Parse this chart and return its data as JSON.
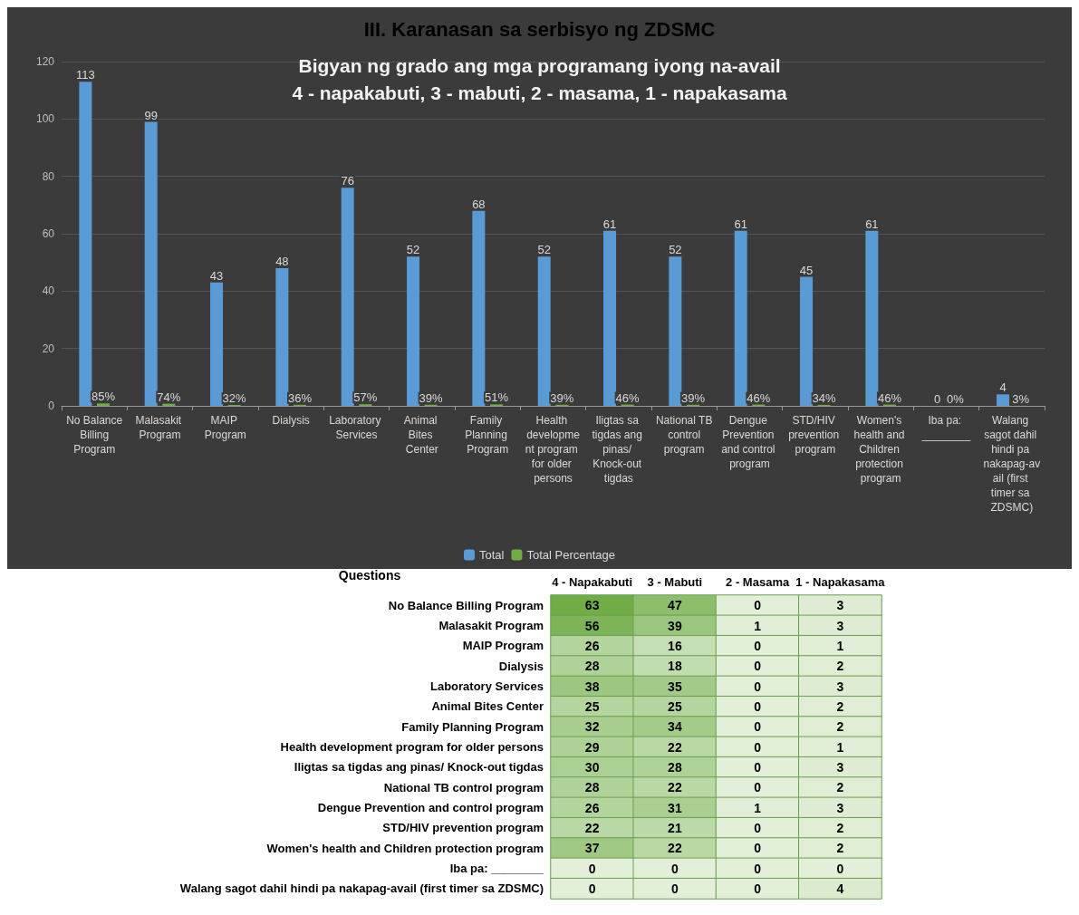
{
  "chart_data": [
    {
      "type": "bar",
      "title": "III. Karanasan sa serbisyo ng ZDSMC",
      "subtitle": "Bigyan ng grado ang mga programang iyong na-avail\n4 - napakabuti, 3 - mabuti, 2 - masama, 1 - napakasama",
      "categories": [
        "No Balance Billing Program",
        "Malasakit Program",
        "MAIP Program",
        "Dialysis",
        "Laboratory Services",
        "Animal Bites Center",
        "Family Planning Program",
        "Health development program for older persons",
        "Iligtas sa tigdas ang pinas/ Knock-out tigdas",
        "National TB control program",
        "Dengue Prevention and control program",
        "STD/HIV prevention program",
        "Women's health and Children protection program",
        "Iba pa: ________",
        "Walang sagot dahil hindi pa nakapag-avail (first timer sa ZDSMC)"
      ],
      "series": [
        {
          "name": "Total",
          "color": "#5b9bd5",
          "values": [
            113,
            99,
            43,
            48,
            76,
            52,
            68,
            52,
            61,
            52,
            61,
            45,
            61,
            0,
            4
          ],
          "value_labels": [
            "113",
            "99",
            "43",
            "48",
            "76",
            "52",
            "68",
            "52",
            "61",
            "52",
            "61",
            "45",
            "61",
            "0",
            "4"
          ]
        },
        {
          "name": "Total Percentage",
          "color": "#70ad47",
          "values": [
            0.85,
            0.74,
            0.32,
            0.36,
            0.57,
            0.39,
            0.51,
            0.39,
            0.46,
            0.39,
            0.46,
            0.34,
            0.46,
            0,
            0.03
          ],
          "value_labels": [
            "85%",
            "74%",
            "32%",
            "36%",
            "57%",
            "39%",
            "51%",
            "39%",
            "46%",
            "39%",
            "46%",
            "34%",
            "46%",
            "0%",
            "3%"
          ]
        }
      ],
      "ylim": [
        0,
        120
      ],
      "yticks": [
        0,
        20,
        40,
        60,
        80,
        100,
        120
      ],
      "grid": "y",
      "legend": "bottom"
    },
    {
      "type": "heatmap",
      "ylabel": "Questions",
      "categories": [
        "4 - Napakabuti",
        "3 - Mabuti",
        "2 - Masama",
        "1 - Napakasama"
      ],
      "y_categories": [
        "No Balance Billing Program",
        "Malasakit Program",
        "MAIP Program",
        "Dialysis",
        "Laboratory Services",
        "Animal Bites Center",
        "Family Planning Program",
        "Health development program for older persons",
        "Iligtas sa tigdas ang pinas/ Knock-out tigdas",
        "National TB control program",
        "Dengue Prevention and control program",
        "STD/HIV prevention program",
        "Women's health and Children protection program",
        "Iba pa: ________",
        "Walang sagot dahil hindi pa nakapag-avail (first timer sa ZDSMC)"
      ],
      "cells": [
        [
          63,
          47,
          0,
          3
        ],
        [
          56,
          39,
          1,
          3
        ],
        [
          26,
          16,
          0,
          1
        ],
        [
          28,
          18,
          0,
          2
        ],
        [
          38,
          35,
          0,
          3
        ],
        [
          25,
          25,
          0,
          2
        ],
        [
          32,
          34,
          0,
          2
        ],
        [
          29,
          22,
          0,
          1
        ],
        [
          30,
          28,
          0,
          3
        ],
        [
          28,
          22,
          0,
          2
        ],
        [
          26,
          31,
          1,
          3
        ],
        [
          22,
          21,
          0,
          2
        ],
        [
          37,
          22,
          0,
          2
        ],
        [
          0,
          0,
          0,
          0
        ],
        [
          0,
          0,
          0,
          4
        ]
      ],
      "data_labels": true
    }
  ]
}
